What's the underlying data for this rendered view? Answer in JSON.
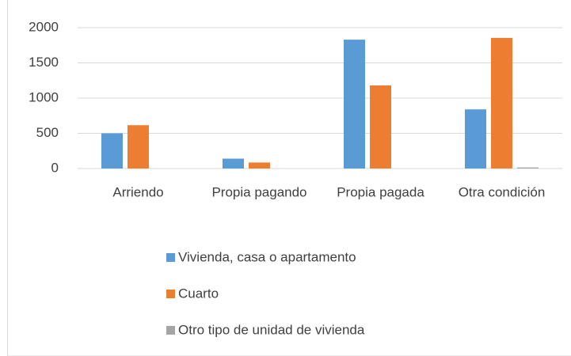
{
  "chart_data": {
    "type": "bar",
    "categories": [
      "Arriendo",
      "Propia pagando",
      "Propia pagada",
      "Otra condición"
    ],
    "series": [
      {
        "name": "Vivienda, casa o apartamento",
        "color": "#5b9bd5",
        "values": [
          500,
          140,
          1830,
          840
        ]
      },
      {
        "name": "Cuarto",
        "color": "#ed7d31",
        "values": [
          615,
          85,
          1180,
          1855
        ]
      },
      {
        "name": "Otro tipo de unidad de vivienda",
        "color": "#a5a5a5",
        "values": [
          0,
          0,
          0,
          15
        ]
      }
    ],
    "ylim": [
      0,
      2000
    ],
    "yticks": [
      0,
      500,
      1000,
      1500,
      2000
    ],
    "grid": true,
    "legend": "bottom"
  }
}
